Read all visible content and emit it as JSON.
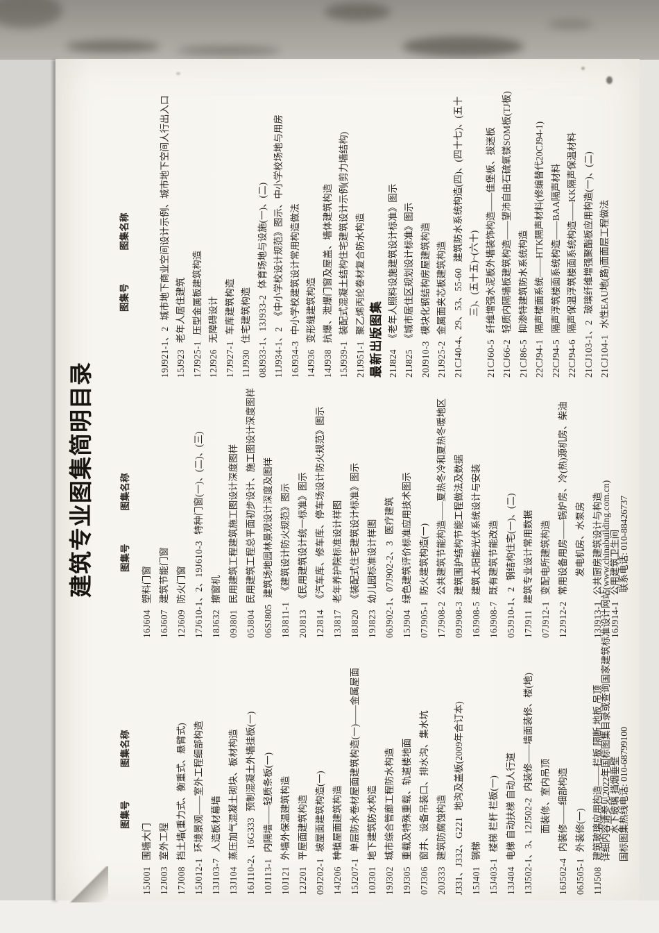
{
  "scan": {
    "title": "建筑专业图集简明目录",
    "column_header": {
      "number": "图集号",
      "name": "图集名称"
    },
    "new_releases_header": "最新出版图集",
    "columns": [
      {
        "entries": [
          {
            "num": "15J001",
            "name": "围墙大门"
          },
          {
            "num": "12J003",
            "name": "室外工程"
          },
          {
            "num": "17J008",
            "name": "挡土墙(重力式、衡重式、悬臂式)"
          },
          {
            "num": "15J012-1",
            "name": "环境景观——室外工程细部构造"
          },
          {
            "num": "13J103-7",
            "name": "人造板材幕墙"
          },
          {
            "num": "13J104",
            "name": "蒸压加气混凝土砌块、板材构造"
          },
          {
            "num": "16J110-2、16G333",
            "name": "预制混凝土外墙挂板(一)"
          },
          {
            "num": "10J113-1",
            "name": "内隔墙——轻质条板(一)"
          },
          {
            "num": "10J121",
            "name": "外墙外保温建筑构造"
          },
          {
            "num": "12J201",
            "name": "平屋面建筑构造"
          },
          {
            "num": "09J202-1",
            "name": "坡屋面建筑构造(一)"
          },
          {
            "num": "14J206",
            "name": "种植屋面建筑构造"
          },
          {
            "num": "15J207-1",
            "name": "单层防水卷材屋面建筑构造(一)——金属屋面"
          },
          {
            "num": "10J301",
            "name": "地下建筑防水构造"
          },
          {
            "num": "19J302",
            "name": "城市综合管廊工程防水构造"
          },
          {
            "num": "19J305",
            "name": "重载及特殊重载、轨道楼地面"
          },
          {
            "num": "07J306",
            "name": "窗井、设备吊装口、排水沟、集水坑"
          },
          {
            "num": "20J333",
            "name": "建筑防腐蚀构造"
          },
          {
            "num": "J331、J332、G221",
            "name": "地沟及盖板(2009年合订本)"
          },
          {
            "num": "15J401",
            "name": "钢梯"
          },
          {
            "num": "15J403-1",
            "name": "楼梯 栏杆 栏板(一)"
          },
          {
            "num": "13J404",
            "name": "电梯 自动扶梯 自动人行道"
          },
          {
            "num": "13J502-1、3、12J502-2",
            "name": "内装修——墙面装修、楼(地)",
            "name2": "面装修、室内吊顶"
          },
          {
            "num": "16J502-4",
            "name": "内装修——细部构造"
          },
          {
            "num": "06J505-1",
            "name": "外装修(一)"
          },
          {
            "num": "11J508",
            "name": "建筑玻璃应用构造——栏板 隔断 地板 吊顶",
            "name2": "水下玻璃 挡烟垂壁"
          }
        ]
      },
      {
        "entries": [
          {
            "num": "16J604",
            "name": "塑料门窗"
          },
          {
            "num": "16J607",
            "name": "建筑节能门窗"
          },
          {
            "num": "12J609",
            "name": "防火门窗"
          },
          {
            "num": "17J610-1、2、19J610-3",
            "name": "特种门窗(一)、(二)、(三)"
          },
          {
            "num": "18J632",
            "name": "擦窗机"
          },
          {
            "num": "09J801",
            "name": "民用建筑工程建筑施工图设计深度图样"
          },
          {
            "num": "05J804",
            "name": "民用建筑工程总平面初步设计、施工图设计深度图样"
          },
          {
            "num": "06SJ805",
            "name": "建筑场地园林景观设计深度及图样"
          },
          {
            "num": "18J811-1",
            "name": "《建筑设计防火规范》图示"
          },
          {
            "num": "20J813",
            "name": "《民用建筑设计统一标准》图示"
          },
          {
            "num": "12J814",
            "name": "《汽车库、修车库、停车场设计防火规范》图示"
          },
          {
            "num": "13J817",
            "name": "老年养护院标准设计样图"
          },
          {
            "num": "18J820",
            "name": "《装配式住宅建筑设计标准》图示"
          },
          {
            "num": "19J823",
            "name": "幼儿园标准设计样图"
          },
          {
            "num": "06J902-1、07J902-2、3",
            "name": "医疗建筑"
          },
          {
            "num": "15J904",
            "name": "绿色建筑评价标准应用技术图示"
          },
          {
            "num": "07J905-1",
            "name": "防火建筑构造(一)"
          },
          {
            "num": "17J908-2",
            "name": "公共建筑节能构造——夏热冬冷和夏热冬暖地区"
          },
          {
            "num": "09J908-3",
            "name": "建筑围护结构节能工程做法及数据"
          },
          {
            "num": "16J908-5",
            "name": "建筑太阳能光伏系统设计与安装"
          },
          {
            "num": "16J908-7",
            "name": "既有建筑节能改造"
          },
          {
            "num": "05J910-1、2",
            "name": "钢结构住宅(一)、(二)"
          },
          {
            "num": "17J911",
            "name": "建筑专业设计常用数据"
          },
          {
            "num": "07J912-1",
            "name": "变配电所建筑构造"
          },
          {
            "num": "12J912-2",
            "name": "常用设备用房——锅炉房、冷(热)源机房、柴油",
            "name2": "发电机房、水泵房"
          },
          {
            "num": "13J913-1",
            "name": "公共厨房建筑设计与构造"
          },
          {
            "num": "16J914-1",
            "name": "公用建筑卫生间"
          }
        ]
      },
      {
        "entries": [
          {
            "num": "19J921-1、2",
            "name": "城市地下商业空间设计示例、城市地下空间人行出入口"
          },
          {
            "num": "15J923",
            "name": "老年人居住建筑"
          },
          {
            "num": "17J925-1",
            "name": "压型金属板建筑构造"
          },
          {
            "num": "12J926",
            "name": "无障碍设计"
          },
          {
            "num": "17J927-1",
            "name": "车库建筑构造"
          },
          {
            "num": "11J930",
            "name": "住宅建筑构造"
          },
          {
            "num": "08J933-1、13J933-2",
            "name": "体育场地与设施(一)、(二)"
          },
          {
            "num": "11J934-1、2",
            "name": "《中小学校设计规范》图示、中小学校场地与用房"
          },
          {
            "num": "16J934-3",
            "name": "中小学校建筑设计常用构造做法"
          },
          {
            "num": "14J936",
            "name": "变形缝建筑构造"
          },
          {
            "num": "14J938",
            "name": "抗爆、泄爆门窗及屋盖、墙体建筑构造"
          },
          {
            "num": "15J939-1",
            "name": "装配式混凝土结构住宅建筑设计示例(剪力墙结构)"
          },
          {
            "num": "21J951-1",
            "name": "聚乙烯丙纶卷材复合防水构造"
          },
          {
            "section": true
          },
          {
            "num": "21J824",
            "name": "《老年人照料设施建筑设计标准》图示"
          },
          {
            "num": "21J825",
            "name": "《城市居住区规划设计标准》图示"
          },
          {
            "num": "20J910-3",
            "name": "模块化钢结构房屋建筑构造"
          },
          {
            "num": "21J925-2",
            "name": "金属面夹芯板建筑构造"
          },
          {
            "num": "21CJ40-4、29、53、55-60",
            "name": "建筑防水系统构造(四)、(四十七)、(五十",
            "name2": "三)、(五十五)~(六十)"
          },
          {
            "num": "21CJ60-5",
            "name": "纤维增强水泥板外墙装饰构造——佳堡板、拔迷板"
          },
          {
            "num": "21CJ66-2",
            "name": "轻质内隔墙板建筑构造——望沛自由石硫氧镁SOM板(TJ板)"
          },
          {
            "num": "21CJ86-5",
            "name": "抑渗特建筑防水系统构造"
          },
          {
            "num": "22CJ94-1",
            "name": "隔声楼面系统——HTK隔声材料(修编替代20CJ94-1)"
          },
          {
            "num": "22CJ94-5",
            "name": "隔声浮筑楼面系统构造——BAA隔声材料"
          },
          {
            "num": "22CJ94-6",
            "name": "隔声保温浮筑楼面系统构造——KK隔声保温材料"
          },
          {
            "num": "21CJ103-1、2",
            "name": "玻璃纤维增强聚酯板应用构造(一)、(二)"
          },
          {
            "num": "21CJ104-1",
            "name": "水性EAU地(路)面面层工程做法"
          }
        ]
      }
    ],
    "footer": {
      "line1": "详细内容请参见2022年国标图集目录或查询国家建筑标准设计网站(www.chinabuilding.com.cn)",
      "hotline": "国标图集热线电话: 010-68799100",
      "contact": "联系电话: 010-88426737"
    },
    "colors": {
      "paper": "#f8f6f1",
      "ink": "#2c2925",
      "scan_background": "#a5a29c"
    }
  }
}
